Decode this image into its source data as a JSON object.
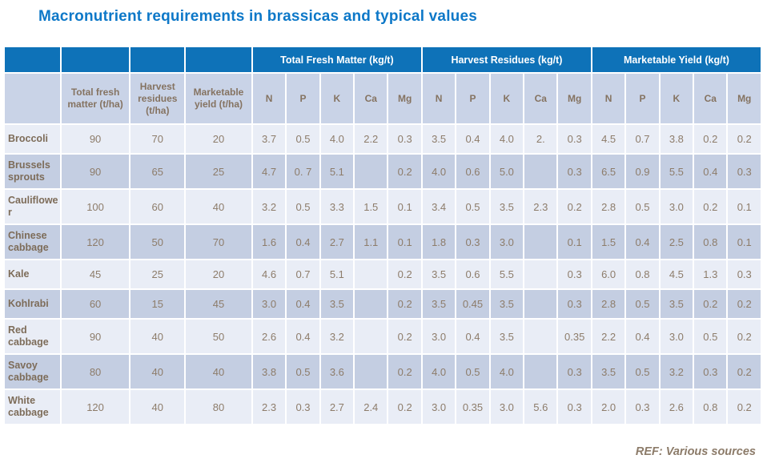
{
  "title": "Macronutrient requirements in brassicas and typical values",
  "footer": {
    "ref": "REF: Various sources"
  },
  "colors": {
    "title_blue": "#0d78c8",
    "header_blue": "#0e72b8",
    "subheader_bg": "#c9d3e7",
    "row_light": "#e9edf6",
    "row_dark": "#c4cee2",
    "data_text": "#8d7c6a",
    "label_text": "#7d6c59"
  },
  "table": {
    "group_headers": [
      "Total Fresh Matter (kg/t)",
      "Harvest Residues (kg/t)",
      "Marketable Yield (kg/t)"
    ],
    "unit_headers": [
      "Total fresh matter (t/ha)",
      "Harvest residues (t/ha)",
      "Marketable yield (t/ha)"
    ],
    "nutrient_headers": [
      "N",
      "P",
      "K",
      "Ca",
      "Mg"
    ],
    "rows": [
      {
        "label": "Broccoli",
        "values": [
          "90",
          "70",
          "20",
          "3.7",
          "0.5",
          "4.0",
          "2.2",
          "0.3",
          "3.5",
          "0.4",
          "4.0",
          "2.",
          "0.3",
          "4.5",
          "0.7",
          "3.8",
          "0.2",
          "0.2"
        ]
      },
      {
        "label": "Brussels sprouts",
        "values": [
          "90",
          "65",
          "25",
          "4.7",
          "0. 7",
          "5.1",
          "",
          "0.2",
          "4.0",
          "0.6",
          "5.0",
          "",
          "0.3",
          "6.5",
          "0.9",
          "5.5",
          "0.4",
          "0.3"
        ]
      },
      {
        "label": "Cauliflower",
        "values": [
          "100",
          "60",
          "40",
          "3.2",
          "0.5",
          "3.3",
          "1.5",
          "0.1",
          "3.4",
          "0.5",
          "3.5",
          "2.3",
          "0.2",
          "2.8",
          "0.5",
          "3.0",
          "0.2",
          "0.1"
        ]
      },
      {
        "label": "Chinese cabbage",
        "values": [
          "120",
          "50",
          "70",
          "1.6",
          "0.4",
          "2.7",
          "1.1",
          "0.1",
          "1.8",
          "0.3",
          "3.0",
          "",
          "0.1",
          "1.5",
          "0.4",
          "2.5",
          "0.8",
          "0.1"
        ]
      },
      {
        "label": "Kale",
        "values": [
          "45",
          "25",
          "20",
          "4.6",
          "0.7",
          "5.1",
          "",
          "0.2",
          "3.5",
          "0.6",
          "5.5",
          "",
          "0.3",
          "6.0",
          "0.8",
          "4.5",
          "1.3",
          "0.3"
        ]
      },
      {
        "label": "Kohlrabi",
        "values": [
          "60",
          "15",
          "45",
          "3.0",
          "0.4",
          "3.5",
          "",
          "0.2",
          "3.5",
          "0.45",
          "3.5",
          "",
          "0.3",
          "2.8",
          "0.5",
          "3.5",
          "0.2",
          "0.2"
        ]
      },
      {
        "label": "Red cabbage",
        "values": [
          "90",
          "40",
          "50",
          "2.6",
          "0.4",
          "3.2",
          "",
          "0.2",
          "3.0",
          "0.4",
          "3.5",
          "",
          "0.35",
          "2.2",
          "0.4",
          "3.0",
          "0.5",
          "0.2"
        ]
      },
      {
        "label": "Savoy cabbage",
        "values": [
          "80",
          "40",
          "40",
          "3.8",
          "0.5",
          "3.6",
          "",
          "0.2",
          "4.0",
          "0.5",
          "4.0",
          "",
          "0.3",
          "3.5",
          "0.5",
          "3.2",
          "0.3",
          "0.2"
        ]
      },
      {
        "label": "White cabbage",
        "values": [
          "120",
          "40",
          "80",
          "2.3",
          "0.3",
          "2.7",
          "2.4",
          "0.2",
          "3.0",
          "0.35",
          "3.0",
          "5.6",
          "0.3",
          "2.0",
          "0.3",
          "2.6",
          "0.8",
          "0.2"
        ]
      }
    ]
  }
}
